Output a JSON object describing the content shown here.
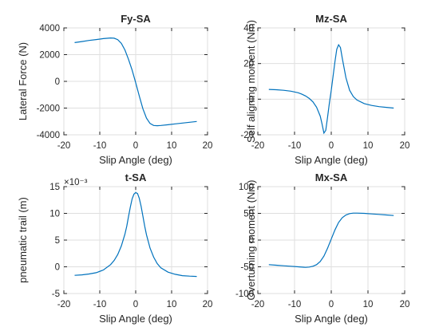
{
  "chart_data": [
    {
      "type": "line",
      "title": "Fy-SA",
      "xlabel": "Slip Angle (deg)",
      "ylabel": "Lateral Force (N)",
      "xlim": [
        -20,
        20
      ],
      "ylim": [
        -4000,
        4000
      ],
      "xticks": [
        -20,
        -10,
        0,
        10,
        20
      ],
      "yticks": [
        -4000,
        -2000,
        0,
        2000,
        4000
      ],
      "xtick_labels": [
        "-20",
        "-10",
        "0",
        "10",
        "20"
      ],
      "ytick_labels": [
        "-4000",
        "-2000",
        "0",
        "2000",
        "4000"
      ],
      "exponent_label": "",
      "grid": true,
      "color": "#0072BD",
      "series": [
        {
          "x": [
            -17,
            -15,
            -13,
            -11,
            -9,
            -7,
            -6,
            -5,
            -4,
            -3,
            -2,
            -1,
            0,
            1,
            2,
            3,
            4,
            5,
            6,
            7,
            9,
            11,
            13,
            15,
            17
          ],
          "y": [
            2900,
            2980,
            3060,
            3130,
            3200,
            3250,
            3230,
            3120,
            2850,
            2350,
            1650,
            850,
            -100,
            -1100,
            -2050,
            -2750,
            -3150,
            -3300,
            -3320,
            -3300,
            -3250,
            -3180,
            -3120,
            -3060,
            -3000
          ]
        }
      ]
    },
    {
      "type": "line",
      "title": "Mz-SA",
      "xlabel": "Slip Angle (deg)",
      "ylabel": "Self aligning moment (Nm)",
      "xlim": [
        -20,
        20
      ],
      "ylim": [
        -20,
        40
      ],
      "xticks": [
        -20,
        -10,
        0,
        10,
        20
      ],
      "yticks": [
        -20,
        0,
        20,
        40
      ],
      "xtick_labels": [
        "-20",
        "-10",
        "0",
        "10",
        "20"
      ],
      "ytick_labels": [
        "-20",
        "0",
        "20",
        "40"
      ],
      "exponent_label": "",
      "grid": true,
      "color": "#0072BD",
      "series": [
        {
          "x": [
            -17,
            -15,
            -13,
            -11,
            -9,
            -8,
            -7,
            -6,
            -5,
            -4,
            -3,
            -2.5,
            -2,
            -1.5,
            -1,
            -0.5,
            0,
            0.5,
            1,
            1.5,
            2,
            2.5,
            3,
            4,
            5,
            6,
            7,
            9,
            11,
            13,
            15,
            17
          ],
          "y": [
            5.5,
            5.3,
            5,
            4.5,
            3.6,
            2.8,
            1.8,
            0.4,
            -1.5,
            -4.5,
            -9.5,
            -14,
            -19,
            -17.5,
            -10,
            -2,
            5,
            13,
            21,
            28,
            30.5,
            29,
            23,
            12,
            5,
            1.5,
            -0.5,
            -2.5,
            -3.5,
            -4.2,
            -4.6,
            -5
          ]
        }
      ]
    },
    {
      "type": "line",
      "title": "t-SA",
      "xlabel": "Slip Angle (deg)",
      "ylabel": "pneumatic trail (m)",
      "xlim": [
        -20,
        20
      ],
      "ylim": [
        -5,
        15
      ],
      "xticks": [
        -20,
        -10,
        0,
        10,
        20
      ],
      "yticks": [
        -5,
        0,
        5,
        10,
        15
      ],
      "xtick_labels": [
        "-20",
        "-10",
        "0",
        "10",
        "20"
      ],
      "ytick_labels": [
        "-5",
        "0",
        "5",
        "10",
        "15"
      ],
      "exponent_label": "×10⁻³",
      "grid": true,
      "color": "#0072BD",
      "series": [
        {
          "x": [
            -17,
            -15,
            -13,
            -11,
            -9,
            -7,
            -6,
            -5,
            -4,
            -3,
            -2.5,
            -2,
            -1.5,
            -1,
            -0.5,
            0,
            0.5,
            1,
            1.5,
            2,
            2.5,
            3,
            4,
            5,
            6,
            7,
            9,
            11,
            13,
            15,
            17
          ],
          "y": [
            -1.6,
            -1.5,
            -1.35,
            -1.1,
            -0.6,
            0.4,
            1.2,
            2.3,
            3.9,
            6.1,
            7.6,
            9.4,
            11.2,
            12.7,
            13.6,
            13.9,
            13.7,
            12.8,
            11.3,
            9.5,
            7.6,
            6,
            3.5,
            1.8,
            0.6,
            -0.2,
            -1,
            -1.4,
            -1.65,
            -1.75,
            -1.8
          ]
        }
      ]
    },
    {
      "type": "line",
      "title": "Mx-SA",
      "xlabel": "Slip Angle (deg)",
      "ylabel": "Overturning moment (Nm)",
      "xlim": [
        -20,
        20
      ],
      "ylim": [
        -100,
        100
      ],
      "xticks": [
        -20,
        -10,
        0,
        10,
        20
      ],
      "yticks": [
        -100,
        -50,
        0,
        50,
        100
      ],
      "xtick_labels": [
        "-20",
        "-10",
        "0",
        "10",
        "20"
      ],
      "ytick_labels": [
        "-100",
        "-50",
        "0",
        "50",
        "100"
      ],
      "exponent_label": "",
      "grid": true,
      "color": "#0072BD",
      "series": [
        {
          "x": [
            -17,
            -15,
            -13,
            -11,
            -9,
            -7,
            -6,
            -5,
            -4,
            -3,
            -2,
            -1,
            0,
            1,
            2,
            3,
            4,
            5,
            6,
            7,
            9,
            11,
            13,
            15,
            17
          ],
          "y": [
            -46,
            -47,
            -48,
            -49,
            -50,
            -51,
            -50.5,
            -49,
            -46,
            -40,
            -30,
            -15,
            2,
            19,
            33,
            42,
            47,
            49.5,
            50.5,
            50.5,
            50,
            49,
            48,
            47,
            46
          ]
        }
      ]
    }
  ]
}
